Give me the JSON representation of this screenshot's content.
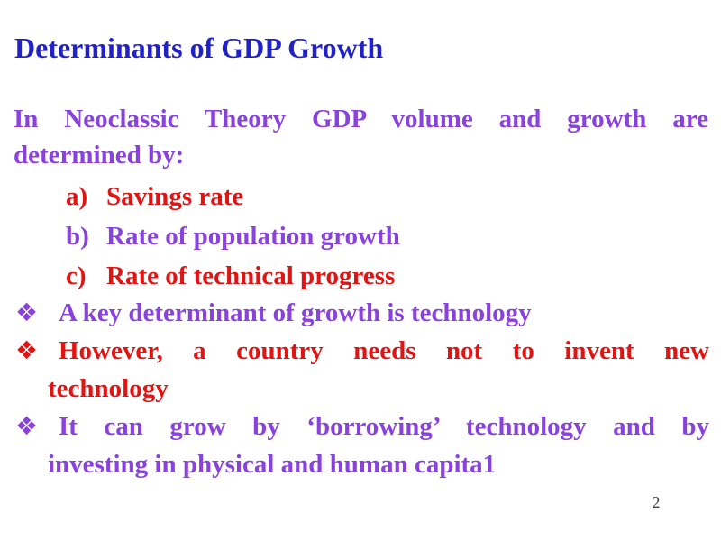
{
  "page": {
    "background": "#ffffff",
    "page_number": "2"
  },
  "colors": {
    "title": "#2121c8",
    "purple": "#8a42dd",
    "red": "#e11414",
    "page_number": "#3d3d3d"
  },
  "title": "Determinants of GDP Growth",
  "intro": {
    "color": "purple",
    "lines": [
      "In Neoclassic Theory GDP volume and growth are",
      "determined by:"
    ]
  },
  "list": [
    {
      "marker": "a)",
      "text": "Savings rate",
      "color": "red"
    },
    {
      "marker": "b)",
      "text": "Rate of population growth",
      "color": "purple"
    },
    {
      "marker": "c)",
      "text": "Rate of technical progress",
      "color": "red"
    }
  ],
  "bullet_glyph": "❖",
  "bullet_icon_name": "diamond-bullet-icon",
  "bullets": [
    {
      "color": "purple",
      "lines": [
        {
          "text": "A key determinant of growth is technology",
          "justify": false
        }
      ]
    },
    {
      "color": "red",
      "lines": [
        {
          "text": "However, a country needs not to invent new",
          "justify": true
        },
        {
          "text": "technology",
          "justify": false
        }
      ]
    },
    {
      "color": "purple",
      "lines": [
        {
          "text": "It can grow by ‘borrowing’ technology and by",
          "justify": true
        },
        {
          "text": "investing in physical and human capita1",
          "justify": false
        }
      ]
    }
  ]
}
